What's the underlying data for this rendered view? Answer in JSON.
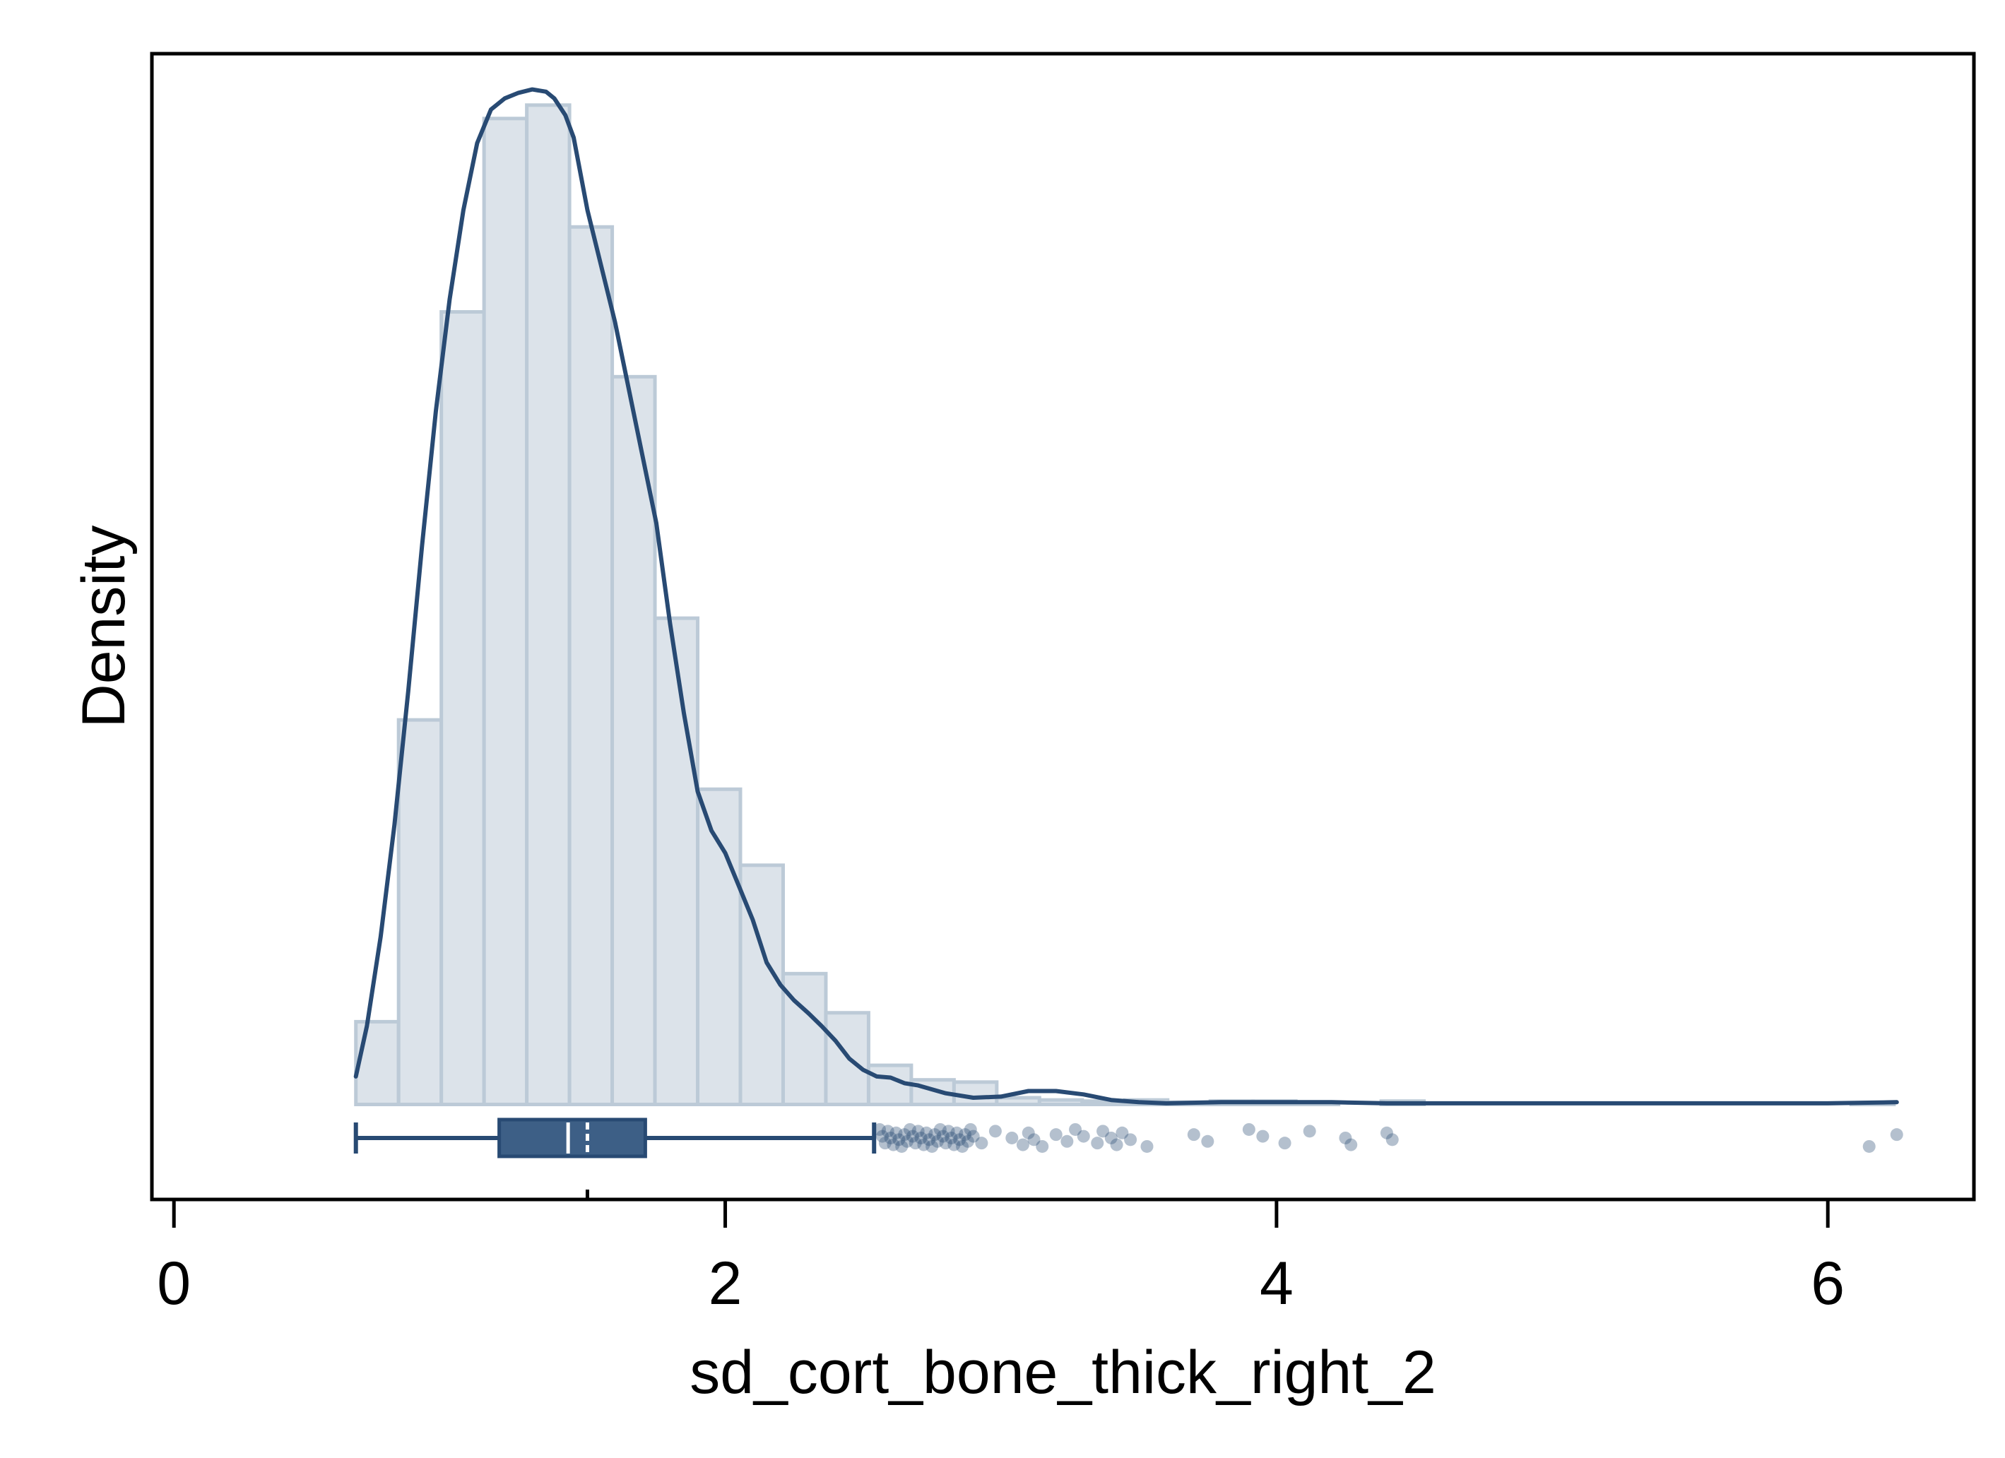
{
  "colors": {
    "background": "#ffffff",
    "bar_fill": "#dce3ea",
    "bar_stroke": "#bccad7",
    "curve": "#284a73",
    "box_fill": "#3d5f86",
    "outlier": "#284a73",
    "axis": "#000000"
  },
  "chart_data": {
    "type": "histogram",
    "title": "",
    "xlabel": "sd_cort_bone_thick_right_2",
    "ylabel": "Density",
    "xlim": [
      -0.08,
      6.53
    ],
    "ylim": [
      -0.085,
      0.94
    ],
    "x_ticks": [
      0,
      2,
      4,
      6
    ],
    "y_ticks": [],
    "grid": false,
    "legend": "none",
    "histogram": {
      "bin_edges": [
        0.66,
        0.815,
        0.97,
        1.125,
        1.28,
        1.435,
        1.59,
        1.745,
        1.9,
        2.055,
        2.21,
        2.365,
        2.52,
        2.675,
        2.83,
        2.985,
        3.14,
        3.295,
        3.45,
        3.605,
        3.76,
        3.915,
        4.07,
        4.225,
        4.38,
        4.535,
        4.69,
        4.845,
        5.0,
        5.155,
        5.31,
        5.465,
        5.62,
        5.775,
        5.93,
        6.085,
        6.24
      ],
      "densities": [
        0.074,
        0.344,
        0.709,
        0.882,
        0.894,
        0.785,
        0.651,
        0.435,
        0.282,
        0.214,
        0.117,
        0.082,
        0.035,
        0.022,
        0.02,
        0.006,
        0.004,
        0.003,
        0.004,
        0.002,
        0.003,
        0.003,
        0.001,
        0.0,
        0.003,
        0.0,
        0.0,
        0.0,
        0.0,
        0.0,
        0.0,
        0.0,
        0.0,
        0.0,
        0.0,
        0.001
      ]
    },
    "density_curve": {
      "x": [
        0.66,
        0.7,
        0.75,
        0.8,
        0.85,
        0.9,
        0.95,
        1.0,
        1.05,
        1.1,
        1.15,
        1.2,
        1.25,
        1.3,
        1.35,
        1.38,
        1.42,
        1.45,
        1.5,
        1.55,
        1.6,
        1.65,
        1.7,
        1.75,
        1.8,
        1.85,
        1.9,
        1.95,
        2.0,
        2.05,
        2.1,
        2.15,
        2.2,
        2.25,
        2.3,
        2.35,
        2.4,
        2.45,
        2.5,
        2.55,
        2.6,
        2.65,
        2.7,
        2.8,
        2.9,
        3.0,
        3.1,
        3.2,
        3.3,
        3.4,
        3.5,
        3.6,
        3.8,
        4.0,
        4.2,
        4.4,
        4.6,
        5.0,
        5.5,
        6.0,
        6.25
      ],
      "y": [
        0.025,
        0.07,
        0.15,
        0.25,
        0.37,
        0.5,
        0.62,
        0.72,
        0.8,
        0.86,
        0.89,
        0.9,
        0.905,
        0.908,
        0.906,
        0.9,
        0.885,
        0.865,
        0.8,
        0.75,
        0.7,
        0.64,
        0.58,
        0.52,
        0.43,
        0.35,
        0.28,
        0.245,
        0.225,
        0.195,
        0.165,
        0.127,
        0.107,
        0.093,
        0.082,
        0.07,
        0.057,
        0.041,
        0.031,
        0.025,
        0.024,
        0.019,
        0.017,
        0.01,
        0.006,
        0.007,
        0.012,
        0.012,
        0.009,
        0.004,
        0.002,
        0.001,
        0.002,
        0.002,
        0.002,
        0.001,
        0.001,
        0.001,
        0.001,
        0.001,
        0.002
      ]
    },
    "boxplot": {
      "whisker_low": 0.66,
      "q1": 1.18,
      "median": 1.43,
      "mean": 1.5,
      "q3": 1.71,
      "whisker_high": 2.54
    },
    "outliers": [
      2.56,
      2.57,
      2.58,
      2.59,
      2.6,
      2.61,
      2.62,
      2.63,
      2.64,
      2.65,
      2.66,
      2.67,
      2.68,
      2.69,
      2.7,
      2.71,
      2.72,
      2.73,
      2.74,
      2.75,
      2.76,
      2.77,
      2.78,
      2.79,
      2.8,
      2.81,
      2.82,
      2.83,
      2.84,
      2.85,
      2.86,
      2.87,
      2.88,
      2.89,
      2.9,
      2.93,
      2.98,
      3.04,
      3.08,
      3.1,
      3.12,
      3.15,
      3.2,
      3.24,
      3.27,
      3.3,
      3.35,
      3.37,
      3.4,
      3.42,
      3.44,
      3.47,
      3.53,
      3.7,
      3.75,
      3.9,
      3.95,
      4.03,
      4.12,
      4.25,
      4.27,
      4.4,
      4.42,
      6.15,
      6.25
    ]
  }
}
